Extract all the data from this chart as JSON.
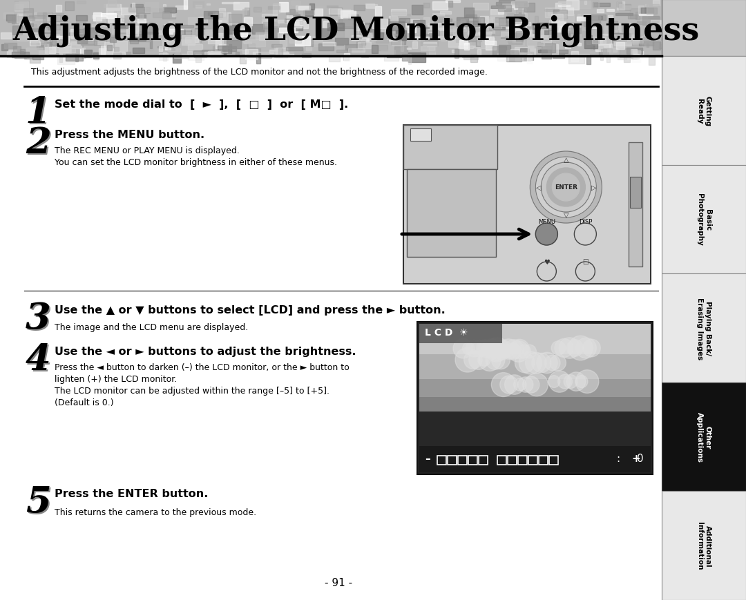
{
  "title": "Adjusting the LCD Monitor Brightness",
  "page_bg": "#ffffff",
  "sidebar_items": [
    {
      "label": "Getting\nReady",
      "active": false
    },
    {
      "label": "Basic\nPhotography",
      "active": false
    },
    {
      "label": "Playing Back/\nErasing Images",
      "active": false
    },
    {
      "label": "Other\nApplications",
      "active": true
    },
    {
      "label": "Additional\nInformation",
      "active": false
    }
  ],
  "intro_text": "This adjustment adjusts the brightness of the LCD monitor and not the brightness of the recorded image.",
  "step1_head": "Set the mode dial to  [  ►  ],  [  📷  ]  or  [ M📷  ].",
  "step2_head": "Press the MENU button.",
  "step2_body1": "The REC MENU or PLAY MENU is displayed.",
  "step2_body2": "You can set the LCD monitor brightness in either of these menus.",
  "step3_head": "Use the ▲ or ▼ buttons to select [LCD] and press the ► button.",
  "step3_body": "The image and the LCD menu are displayed.",
  "step4_head": "Use the ◄ or ► buttons to adjust the brightness.",
  "step4_body1": "Press the ◄ button to darken (–) the LCD monitor, or the ► button to",
  "step4_body2": "lighten (+) the LCD monitor.",
  "step4_body3": "The LCD monitor can be adjusted within the range [–5] to [+5].",
  "step4_body4": "(Default is 0.)",
  "step5_head": "Press the ENTER button.",
  "step5_body": "This returns the camera to the previous mode.",
  "page_number": "- 91 -"
}
